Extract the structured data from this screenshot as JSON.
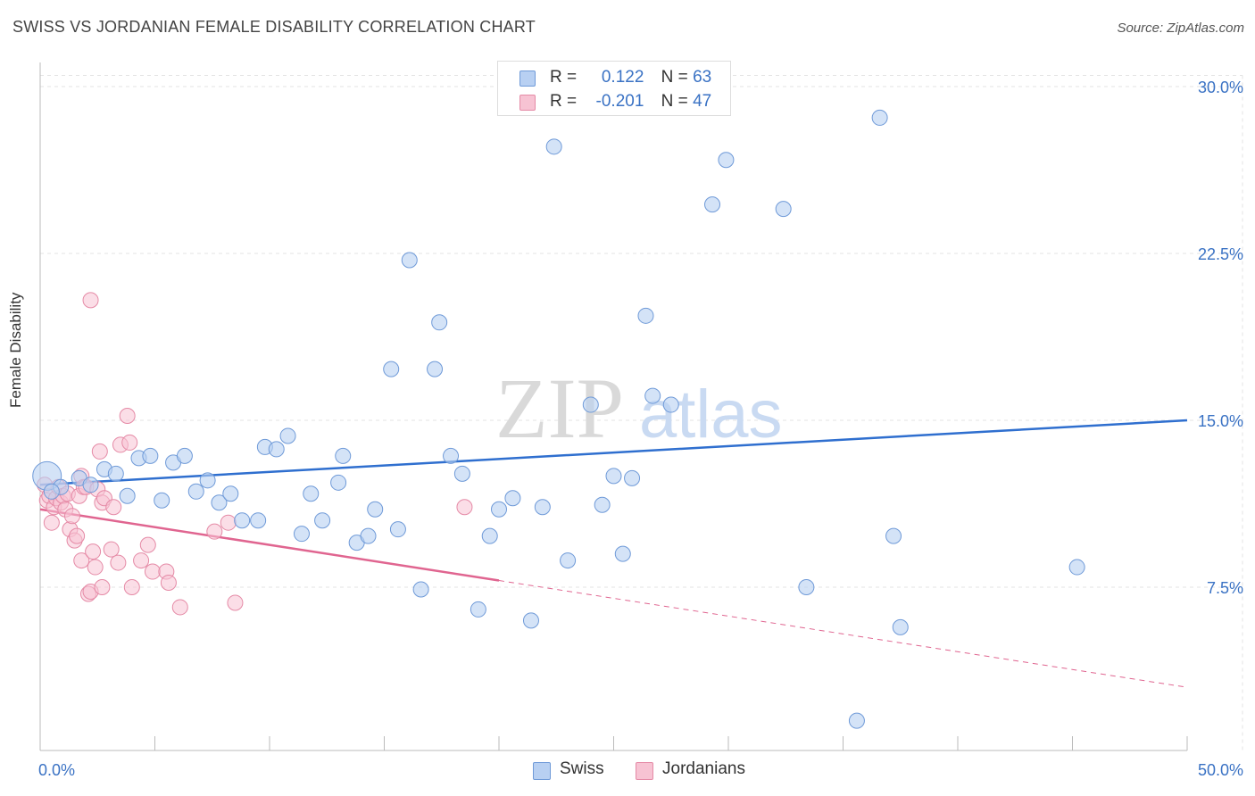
{
  "title": "SWISS VS JORDANIAN FEMALE DISABILITY CORRELATION CHART",
  "source": "Source: ZipAtlas.com",
  "watermark": {
    "zip": "ZIP",
    "atlas": "atlas"
  },
  "colors": {
    "swiss_fill": "#b8d0f2",
    "swiss_stroke": "#6f9ad8",
    "swiss_line": "#2f6fcf",
    "jordan_fill": "#f7c3d3",
    "jordan_stroke": "#e58aa6",
    "jordan_line": "#e06590",
    "axis_text": "#3a72c4",
    "grid": "#e3e3e3"
  },
  "legend": {
    "rows": [
      {
        "r_label": "R =",
        "r_value": "0.122",
        "n_label": "N =",
        "n_value": "63"
      },
      {
        "r_label": "R =",
        "r_value": "-0.201",
        "n_label": "N =",
        "n_value": "47"
      }
    ]
  },
  "chart_data": {
    "type": "scatter",
    "title": "SWISS VS JORDANIAN FEMALE DISABILITY CORRELATION CHART",
    "xlabel": "",
    "ylabel": "Female Disability",
    "xlim": [
      0,
      50
    ],
    "ylim": [
      0,
      31
    ],
    "x_tick_labels": [
      "0.0%",
      "50.0%"
    ],
    "y_ticks": [
      7.5,
      15.0,
      22.5,
      30.0
    ],
    "y_tick_labels": [
      "7.5%",
      "15.0%",
      "22.5%",
      "30.0%"
    ],
    "grid": true,
    "legend_position": "top-center",
    "series": [
      {
        "name": "Swiss",
        "trend": {
          "x": [
            0,
            50
          ],
          "y": [
            12.1,
            15.0
          ],
          "solid_until": 50
        },
        "points": [
          [
            0.3,
            12.5
          ],
          [
            0.9,
            12.0
          ],
          [
            1.7,
            12.4
          ],
          [
            2.2,
            12.1
          ],
          [
            2.8,
            12.8
          ],
          [
            3.3,
            12.6
          ],
          [
            3.8,
            11.6
          ],
          [
            4.3,
            13.3
          ],
          [
            4.8,
            13.4
          ],
          [
            5.3,
            11.4
          ],
          [
            5.8,
            13.1
          ],
          [
            6.3,
            13.4
          ],
          [
            6.8,
            11.8
          ],
          [
            7.3,
            12.3
          ],
          [
            7.8,
            11.3
          ],
          [
            8.3,
            11.7
          ],
          [
            8.8,
            10.5
          ],
          [
            9.5,
            10.5
          ],
          [
            9.8,
            13.8
          ],
          [
            10.3,
            13.7
          ],
          [
            10.8,
            14.3
          ],
          [
            11.4,
            9.9
          ],
          [
            11.8,
            11.7
          ],
          [
            12.3,
            10.5
          ],
          [
            13.0,
            12.2
          ],
          [
            13.2,
            13.4
          ],
          [
            13.8,
            9.5
          ],
          [
            14.3,
            9.8
          ],
          [
            14.6,
            11.0
          ],
          [
            15.3,
            17.3
          ],
          [
            15.6,
            10.1
          ],
          [
            16.1,
            22.2
          ],
          [
            16.6,
            7.4
          ],
          [
            17.2,
            17.3
          ],
          [
            17.4,
            19.4
          ],
          [
            17.9,
            13.4
          ],
          [
            18.4,
            12.6
          ],
          [
            19.1,
            6.5
          ],
          [
            19.6,
            9.8
          ],
          [
            20.0,
            11.0
          ],
          [
            20.6,
            11.5
          ],
          [
            21.4,
            6.0
          ],
          [
            21.9,
            11.1
          ],
          [
            22.4,
            27.3
          ],
          [
            23.0,
            8.7
          ],
          [
            24.0,
            15.7
          ],
          [
            24.5,
            11.2
          ],
          [
            25.0,
            12.5
          ],
          [
            25.4,
            9.0
          ],
          [
            25.8,
            12.4
          ],
          [
            26.4,
            19.7
          ],
          [
            26.7,
            16.1
          ],
          [
            27.5,
            15.7
          ],
          [
            29.3,
            24.7
          ],
          [
            29.9,
            26.7
          ],
          [
            32.4,
            24.5
          ],
          [
            33.4,
            7.5
          ],
          [
            35.6,
            1.5
          ],
          [
            36.6,
            28.6
          ],
          [
            37.2,
            9.8
          ],
          [
            37.5,
            5.7
          ],
          [
            45.2,
            8.4
          ],
          [
            0.5,
            11.8
          ]
        ]
      },
      {
        "name": "Jordanians",
        "trend": {
          "x": [
            0,
            50
          ],
          "y": [
            11.0,
            3.0
          ],
          "solid_until": 20
        },
        "points": [
          [
            0.2,
            12.1
          ],
          [
            0.3,
            11.4
          ],
          [
            0.4,
            11.6
          ],
          [
            0.5,
            10.4
          ],
          [
            0.6,
            11.1
          ],
          [
            0.7,
            11.5
          ],
          [
            0.8,
            12.0
          ],
          [
            0.9,
            11.3
          ],
          [
            1.0,
            11.6
          ],
          [
            1.1,
            11.0
          ],
          [
            1.2,
            11.7
          ],
          [
            1.3,
            10.1
          ],
          [
            1.4,
            10.7
          ],
          [
            1.5,
            9.6
          ],
          [
            1.6,
            9.8
          ],
          [
            1.7,
            11.6
          ],
          [
            1.8,
            8.7
          ],
          [
            1.8,
            12.5
          ],
          [
            1.9,
            12.0
          ],
          [
            2.0,
            12.0
          ],
          [
            2.1,
            7.2
          ],
          [
            2.2,
            7.3
          ],
          [
            2.2,
            20.4
          ],
          [
            2.3,
            9.1
          ],
          [
            2.4,
            8.4
          ],
          [
            2.5,
            11.9
          ],
          [
            2.6,
            13.6
          ],
          [
            2.7,
            7.5
          ],
          [
            2.7,
            11.3
          ],
          [
            2.8,
            11.5
          ],
          [
            3.1,
            9.2
          ],
          [
            3.2,
            11.1
          ],
          [
            3.4,
            8.6
          ],
          [
            3.5,
            13.9
          ],
          [
            3.8,
            15.2
          ],
          [
            3.9,
            14.0
          ],
          [
            4.0,
            7.5
          ],
          [
            4.4,
            8.7
          ],
          [
            4.7,
            9.4
          ],
          [
            4.9,
            8.2
          ],
          [
            5.5,
            8.2
          ],
          [
            5.6,
            7.7
          ],
          [
            6.1,
            6.6
          ],
          [
            7.6,
            10.0
          ],
          [
            8.2,
            10.4
          ],
          [
            8.5,
            6.8
          ],
          [
            18.5,
            11.1
          ]
        ]
      }
    ]
  },
  "bottom_legend": [
    {
      "label": "Swiss"
    },
    {
      "label": "Jordanians"
    }
  ]
}
